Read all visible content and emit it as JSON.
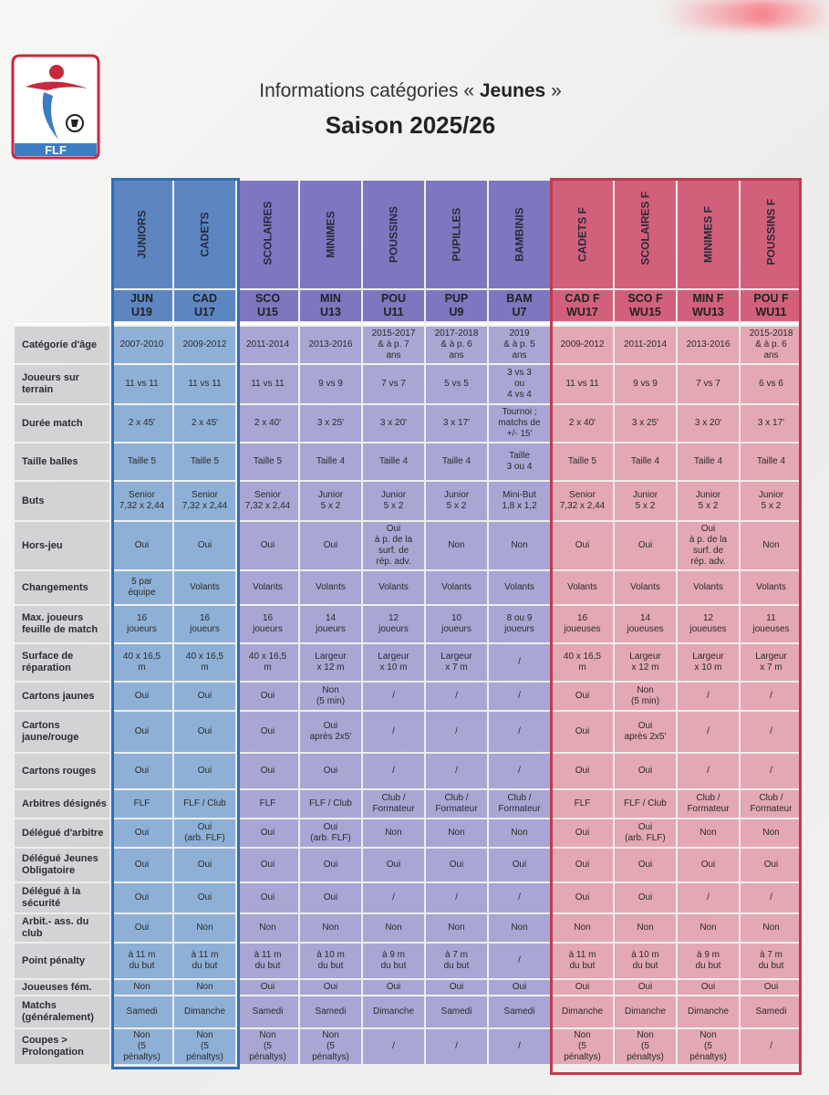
{
  "header": {
    "logo_text": "FLF",
    "title_prefix": "Informations catégories « ",
    "title_bold": "Jeunes",
    "title_suffix": " »",
    "season": "Saison 2025/26"
  },
  "colors": {
    "blue_group": "#8fb0d6",
    "violet_group": "#a9a6d4",
    "red_group": "#e3a8b3",
    "blue_frame": "#2f6fb5",
    "red_frame": "#c23a4c"
  },
  "columns": [
    {
      "name": "JUNIORS",
      "code1": "JUN",
      "code2": "U19",
      "group": "blue"
    },
    {
      "name": "CADETS",
      "code1": "CAD",
      "code2": "U17",
      "group": "blue"
    },
    {
      "name": "SCOLAIRES",
      "code1": "SCO",
      "code2": "U15",
      "group": "violet"
    },
    {
      "name": "MINIMES",
      "code1": "MIN",
      "code2": "U13",
      "group": "violet"
    },
    {
      "name": "POUSSINS",
      "code1": "POU",
      "code2": "U11",
      "group": "violet"
    },
    {
      "name": "PUPILLES",
      "code1": "PUP",
      "code2": "U9",
      "group": "violet"
    },
    {
      "name": "BAMBINIS",
      "code1": "BAM",
      "code2": "U7",
      "group": "violet"
    },
    {
      "name": "CADETS F",
      "code1": "CAD F",
      "code2": "WU17",
      "group": "red"
    },
    {
      "name": "SCOLAIRES F",
      "code1": "SCO F",
      "code2": "WU15",
      "group": "red"
    },
    {
      "name": "MINIMES F",
      "code1": "MIN F",
      "code2": "WU13",
      "group": "red"
    },
    {
      "name": "POUSSINS F",
      "code1": "POU F",
      "code2": "WU11",
      "group": "red"
    }
  ],
  "rows": [
    {
      "label": "Catégorie d'âge",
      "h": 40,
      "cells": [
        "2007-2010",
        "2009-2012",
        "2011-2014",
        "2013-2016",
        "2015-2017\n& à p. 7\nans",
        "2017-2018\n& à p. 6\nans",
        "2019\n& à p. 5\nans",
        "2009-2012",
        "2011-2014",
        "2013-2016",
        "2015-2018\n& à p. 6\nans"
      ]
    },
    {
      "label": "Joueurs sur\nterrain",
      "h": 42,
      "cells": [
        "11 vs 11",
        "11 vs 11",
        "11 vs 11",
        "9 vs 9",
        "7 vs 7",
        "5 vs 5",
        "3 vs 3\nou\n4 vs 4",
        "11 vs 11",
        "9 vs 9",
        "7 vs 7",
        "6 vs 6"
      ]
    },
    {
      "label": "Durée match",
      "h": 40,
      "cells": [
        "2 x 45'",
        "2 x 45'",
        "2 x 40'",
        "3 x 25'",
        "3 x 20'",
        "3 x 17'",
        "Tournoi ;\nmatchs de\n+/- 15'",
        "2 x 40'",
        "3 x 25'",
        "3 x 20'",
        "3 x 17'"
      ]
    },
    {
      "label": "Taille balles",
      "h": 40,
      "cells": [
        "Taille 5",
        "Taille 5",
        "Taille 5",
        "Taille 4",
        "Taille 4",
        "Taille 4",
        "Taille\n3 ou 4",
        "Taille 5",
        "Taille 4",
        "Taille 4",
        "Taille 4"
      ]
    },
    {
      "label": "Buts",
      "h": 42,
      "cells": [
        "Senior\n7,32 x 2,44",
        "Senior\n7,32 x 2,44",
        "Senior\n7,32 x 2,44",
        "Junior\n5 x 2",
        "Junior\n5 x 2",
        "Junior\n5 x 2",
        "Mini-But\n1,8 x 1,2",
        "Senior\n7,32 x 2,44",
        "Junior\n5 x 2",
        "Junior\n5 x 2",
        "Junior\n5 x 2"
      ]
    },
    {
      "label": "Hors-jeu",
      "h": 52,
      "cells": [
        "Oui",
        "Oui",
        "Oui",
        "Oui",
        "Oui\nà p. de la\nsurf. de\nrép. adv.",
        "Non",
        "Non",
        "Oui",
        "Oui",
        "Oui\nà p. de la\nsurf. de\nrép. adv.",
        "Non"
      ]
    },
    {
      "label": "Changements",
      "h": 36,
      "cells": [
        "5 par\néquipe",
        "Volants",
        "Volants",
        "Volants",
        "Volants",
        "Volants",
        "Volants",
        "Volants",
        "Volants",
        "Volants",
        "Volants"
      ]
    },
    {
      "label": "Max. joueurs\nfeuille de match",
      "h": 40,
      "cells": [
        "16\njoueurs",
        "16\njoueurs",
        "16\njoueurs",
        "14\njoueurs",
        "12\njoueurs",
        "10\njoueurs",
        "8 ou 9\njoueurs",
        "16\njoueuses",
        "14\njoueuses",
        "12\njoueuses",
        "11\njoueuses"
      ]
    },
    {
      "label": "Surface de\nréparation",
      "h": 40,
      "cells": [
        "40 x 16,5\nm",
        "40 x 16,5\nm",
        "40 x 16,5\nm",
        "Largeur\nx 12 m",
        "Largeur\nx 10 m",
        "Largeur\nx 7 m",
        "/",
        "40 x 16,5\nm",
        "Largeur\nx 12 m",
        "Largeur\nx 10 m",
        "Largeur\nx 7 m"
      ]
    },
    {
      "label": "Cartons jaunes",
      "h": 30,
      "cells": [
        "Oui",
        "Oui",
        "Oui",
        "Non\n(5 min)",
        "/",
        "/",
        "/",
        "Oui",
        "Non\n(5 min)",
        "/",
        "/"
      ]
    },
    {
      "label": "Cartons\njaune/rouge",
      "h": 44,
      "cells": [
        "Oui",
        "Oui",
        "Oui",
        "Oui\naprès 2x5'",
        "/",
        "/",
        "/",
        "Oui",
        "Oui\naprès 2x5'",
        "/",
        "/"
      ]
    },
    {
      "label": "Cartons rouges",
      "h": 38,
      "cells": [
        "Oui",
        "Oui",
        "Oui",
        "Oui",
        "/",
        "/",
        "/",
        "Oui",
        "Oui",
        "/",
        "/"
      ]
    },
    {
      "label": "Arbitres désignés",
      "h": 30,
      "cells": [
        "FLF",
        "FLF / Club",
        "FLF",
        "FLF / Club",
        "Club /\nFormateur",
        "Club /\nFormateur",
        "Club /\nFormateur",
        "FLF",
        "FLF / Club",
        "Club /\nFormateur",
        "Club /\nFormateur"
      ]
    },
    {
      "label": "Délégué d'arbitre",
      "h": 30,
      "cells": [
        "Oui",
        "Oui\n(arb. FLF)",
        "Oui",
        "Oui\n(arb. FLF)",
        "Non",
        "Non",
        "Non",
        "Oui",
        "Oui\n(arb. FLF)",
        "Non",
        "Non"
      ]
    },
    {
      "label": "Délégué Jeunes\nObligatoire",
      "h": 36,
      "cells": [
        "Oui",
        "Oui",
        "Oui",
        "Oui",
        "Oui",
        "Oui",
        "Oui",
        "Oui",
        "Oui",
        "Oui",
        "Oui"
      ]
    },
    {
      "label": "Délégué à la\nsécurité",
      "h": 32,
      "cells": [
        "Oui",
        "Oui",
        "Oui",
        "Oui",
        "/",
        "/",
        "/",
        "Oui",
        "Oui",
        "/",
        "/"
      ]
    },
    {
      "label": "Arbit.- ass. du\nclub",
      "h": 30,
      "cells": [
        "Oui",
        "Non",
        "Non",
        "Non",
        "Non",
        "Non",
        "Non",
        "Non",
        "Non",
        "Non",
        "Non"
      ]
    },
    {
      "label": "Point pénalty",
      "h": 38,
      "cells": [
        "à 11 m\ndu but",
        "à 11 m\ndu but",
        "à 11 m\ndu but",
        "à 10 m\ndu but",
        "à 9 m\ndu but",
        "à 7 m\ndu but",
        "/",
        "à 11 m\ndu but",
        "à 10 m\ndu but",
        "à 9 m\ndu but",
        "à 7 m\ndu but"
      ]
    },
    {
      "label": "Joueuses fém.",
      "h": 16,
      "cells": [
        "Non",
        "Non",
        "Oui",
        "Oui",
        "Oui",
        "Oui",
        "Oui",
        "Oui",
        "Oui",
        "Oui",
        "Oui"
      ]
    },
    {
      "label": "Matchs\n(généralement)",
      "h": 34,
      "cells": [
        "Samedi",
        "Dimanche",
        "Samedi",
        "Samedi",
        "Dimanche",
        "Samedi",
        "Samedi",
        "Dimanche",
        "Dimanche",
        "Dimanche",
        "Samedi"
      ]
    },
    {
      "label": "Coupes >\nProlongation",
      "h": 38,
      "cells": [
        "Non\n(5\npénaltys)",
        "Non\n(5\npénaltys)",
        "Non\n(5\npénaltys)",
        "Non\n(5\npénaltys)",
        "/",
        "/",
        "/",
        "Non\n(5\npénaltys)",
        "Non\n(5\npénaltys)",
        "Non\n(5\npénaltys)",
        "/"
      ]
    }
  ]
}
